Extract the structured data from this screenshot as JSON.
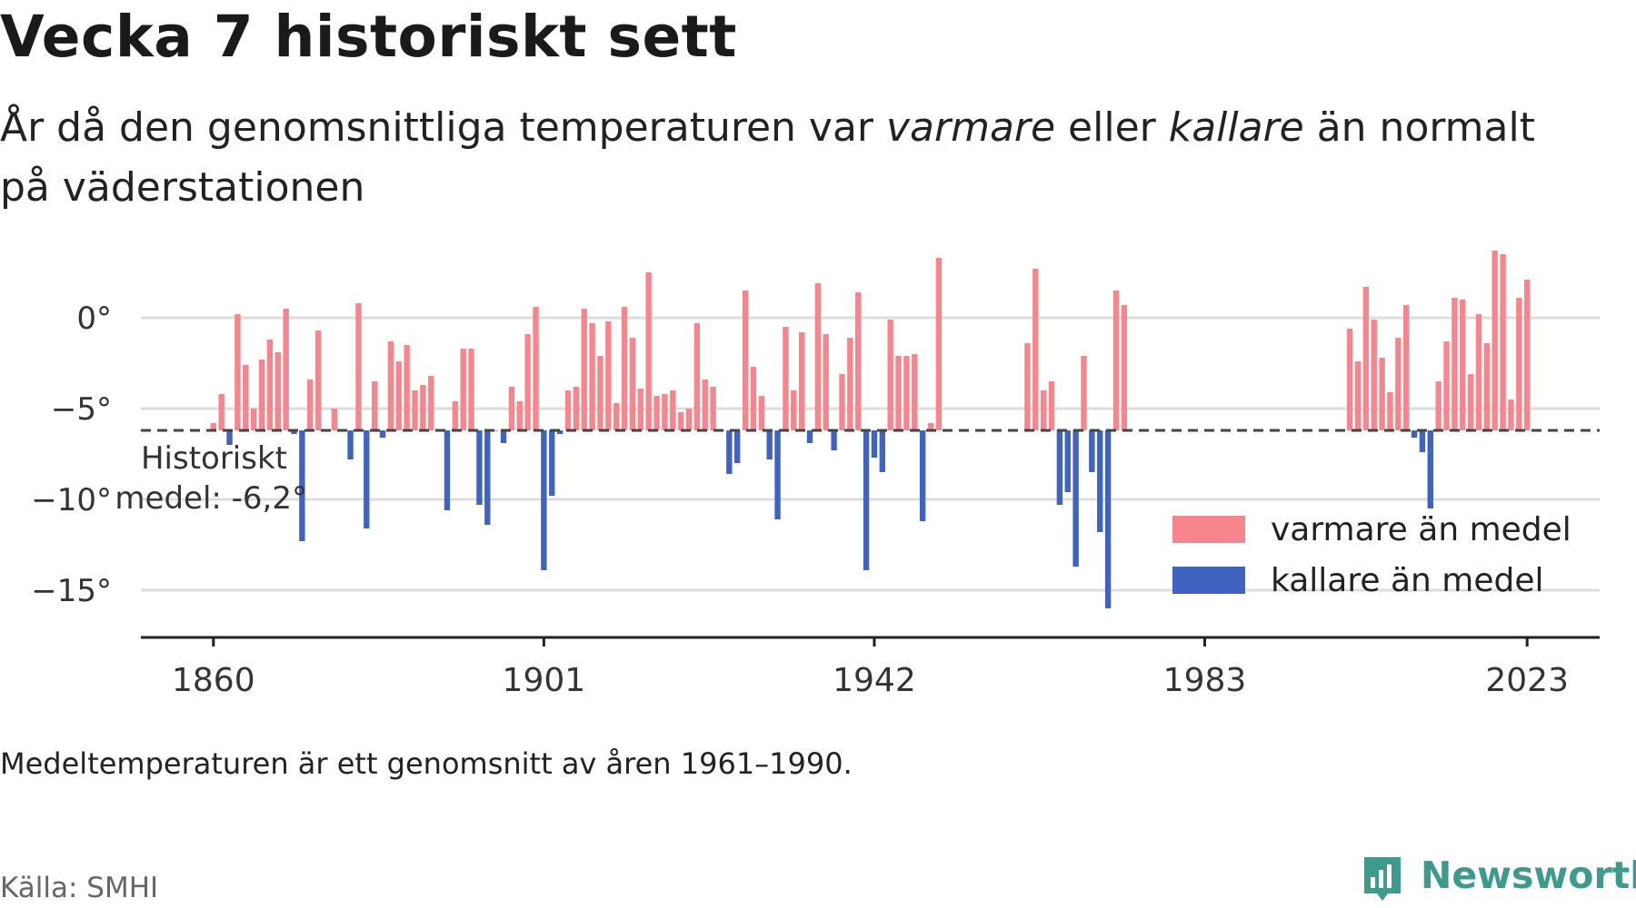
{
  "title": "Vecka 7 historiskt sett",
  "subtitle": {
    "part1": "År då den genomsnittliga temperaturen var ",
    "warm_word": "varmare",
    "part2": " eller ",
    "cold_word": "kallare",
    "part3": " än normalt på väderstationen"
  },
  "footnote": "Medeltemperaturen är ett genomsnitt av åren 1961–1990.",
  "source": "Källa: SMHI",
  "brand": {
    "name": "Newsworthy",
    "icon": "newsworthy-logo-icon"
  },
  "colors": {
    "warm": "#f7858e",
    "cold": "#4063bf",
    "grid": "#dddddd",
    "reference": "#444444",
    "brand": "#3d9a8c"
  },
  "chart_data": {
    "type": "bar",
    "baseline": -6.2,
    "baseline_label_line1": "Historiskt",
    "baseline_label_line2": "medel: -6,2°",
    "ylim": [
      -17,
      4
    ],
    "yticks": [
      0,
      -5,
      -10,
      -15
    ],
    "ytick_labels": [
      "0°",
      "−5°",
      "−10°",
      "−15°"
    ],
    "xlim": [
      1851,
      2032
    ],
    "xticks": [
      1860,
      1901,
      1942,
      1983,
      2023
    ],
    "xtick_labels": [
      "1860",
      "1901",
      "1942",
      "1983",
      "2023"
    ],
    "legend": {
      "warm": "varmare än medel",
      "cold": "kallare än medel",
      "position": "bottom-right"
    },
    "x": [
      1860,
      1861,
      1862,
      1863,
      1864,
      1865,
      1866,
      1867,
      1868,
      1869,
      1870,
      1871,
      1872,
      1873,
      1874,
      1875,
      1876,
      1877,
      1878,
      1879,
      1880,
      1881,
      1882,
      1883,
      1884,
      1885,
      1886,
      1887,
      1888,
      1889,
      1890,
      1891,
      1892,
      1893,
      1894,
      1895,
      1896,
      1897,
      1898,
      1899,
      1900,
      1901,
      1902,
      1903,
      1904,
      1905,
      1906,
      1907,
      1908,
      1909,
      1910,
      1911,
      1912,
      1913,
      1914,
      1915,
      1916,
      1917,
      1918,
      1919,
      1920,
      1921,
      1922,
      1923,
      1924,
      1925,
      1926,
      1927,
      1928,
      1929,
      1930,
      1931,
      1932,
      1933,
      1934,
      1935,
      1936,
      1937,
      1938,
      1939,
      1940,
      1941,
      1942,
      1943,
      1944,
      1945,
      1946,
      1947,
      1948,
      1949,
      1950,
      1961,
      1962,
      1963,
      1964,
      1965,
      1966,
      1967,
      1968,
      1969,
      1970,
      1971,
      1972,
      1973,
      2001,
      2002,
      2003,
      2004,
      2005,
      2006,
      2007,
      2008,
      2009,
      2010,
      2011,
      2012,
      2013,
      2014,
      2015,
      2016,
      2017,
      2018,
      2019,
      2020,
      2021,
      2022,
      2023
    ],
    "values": [
      -5.8,
      -4.2,
      -7.0,
      0.2,
      -2.6,
      -5.0,
      -2.3,
      -1.2,
      -1.9,
      0.5,
      -6.4,
      -12.3,
      -3.4,
      -0.7,
      -6.2,
      -5.0,
      -6.2,
      -7.8,
      0.8,
      -11.6,
      -3.5,
      -6.6,
      -1.3,
      -2.4,
      -1.5,
      -4.0,
      -3.7,
      -3.2,
      -6.2,
      -10.6,
      -4.6,
      -1.7,
      -1.7,
      -10.3,
      -11.4,
      -6.2,
      -6.9,
      -3.8,
      -4.6,
      -0.9,
      0.6,
      -13.9,
      -9.8,
      -6.4,
      -4.0,
      -3.8,
      0.5,
      -0.3,
      -2.1,
      -0.2,
      -4.7,
      0.6,
      -1.1,
      -3.9,
      2.5,
      -4.3,
      -4.2,
      -4.0,
      -5.2,
      -5.0,
      -0.3,
      -3.4,
      -3.8,
      -6.2,
      -8.6,
      -8.0,
      1.5,
      -2.7,
      -4.3,
      -7.8,
      -11.1,
      -0.5,
      -4.0,
      -0.8,
      -6.9,
      1.9,
      -0.9,
      -7.3,
      -3.1,
      -1.1,
      1.4,
      -13.9,
      -7.7,
      -8.5,
      -0.1,
      -2.1,
      -2.1,
      -2.0,
      -11.2,
      -5.8,
      3.3,
      -1.4,
      2.7,
      -4.0,
      -3.5,
      -10.3,
      -9.6,
      -13.7,
      -2.1,
      -8.5,
      -11.8,
      -16.0,
      1.5,
      0.7,
      -0.6,
      -2.4,
      1.7,
      -0.1,
      -2.2,
      -4.1,
      -1.1,
      0.7,
      -6.6,
      -7.4,
      -10.5,
      -3.5,
      -1.3,
      1.1,
      1.0,
      -3.1,
      0.2,
      -1.4,
      3.7,
      3.5,
      -4.5,
      1.1,
      2.1
    ]
  }
}
